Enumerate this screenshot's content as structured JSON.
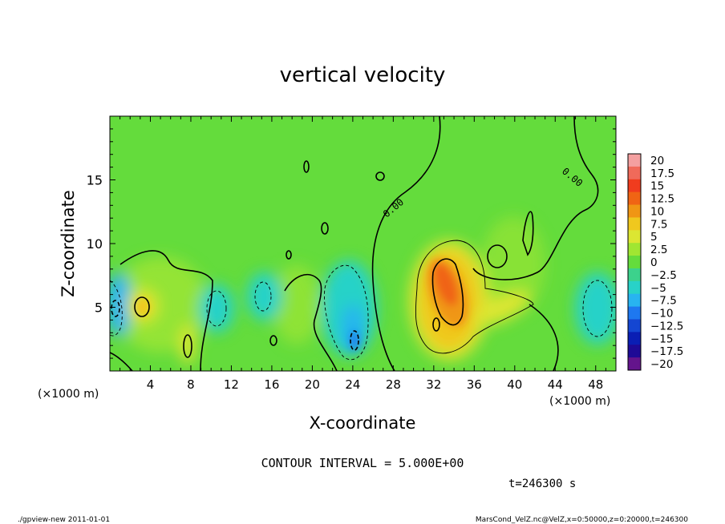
{
  "chart_data": {
    "type": "heatmap",
    "title": "vertical velocity",
    "xlabel": "X-coordinate",
    "ylabel": "Z-coordinate",
    "x_unit": "(×1000 m)",
    "y_unit": "(×1000 m)",
    "xlim": [
      0,
      50
    ],
    "ylim": [
      0,
      20
    ],
    "x_ticks": [
      "4",
      "8",
      "12",
      "16",
      "20",
      "24",
      "28",
      "32",
      "36",
      "40",
      "44",
      "48"
    ],
    "x_tick_values": [
      4,
      8,
      12,
      16,
      20,
      24,
      28,
      32,
      36,
      40,
      44,
      48
    ],
    "y_ticks": [
      "5",
      "10",
      "15"
    ],
    "y_tick_values": [
      5,
      10,
      15
    ],
    "contour_interval_text": "CONTOUR INTERVAL = 5.000E+00",
    "time_text": "t=246300 s",
    "contour_labels": [
      "0.00",
      "0.00"
    ],
    "colorbar": {
      "labels": [
        "20",
        "17.5",
        "15",
        "12.5",
        "10",
        "7.5",
        "5",
        "2.5",
        "0",
        "−2.5",
        "−5",
        "−7.5",
        "−10",
        "−12.5",
        "−15",
        "−17.5",
        "−20"
      ],
      "values": [
        20,
        17.5,
        15,
        12.5,
        10,
        7.5,
        5,
        2.5,
        0,
        -2.5,
        -5,
        -7.5,
        -10,
        -12.5,
        -15,
        -17.5,
        -20
      ],
      "colors": [
        "#f4a0a0",
        "#f06a5a",
        "#f03c1e",
        "#f06414",
        "#f09614",
        "#f0c81e",
        "#dce632",
        "#a0e632",
        "#64dc3c",
        "#3cd28c",
        "#28d2c8",
        "#28b4f0",
        "#1e78f0",
        "#1446d2",
        "#0a1eb4",
        "#1e0a96",
        "#64148c"
      ]
    },
    "features": [
      {
        "kind": "updraft",
        "x": 33,
        "z": 6.5,
        "peak": 12.5
      },
      {
        "kind": "updraft",
        "x": 4,
        "z": 5,
        "peak": 7.5
      },
      {
        "kind": "updraft",
        "x": 8,
        "z": 2,
        "peak": 5
      },
      {
        "kind": "downdraft",
        "x": 24,
        "z": 3,
        "peak": -7.5
      },
      {
        "kind": "downdraft",
        "x": 1,
        "z": 5,
        "peak": -7.5
      },
      {
        "kind": "downdraft",
        "x": 47,
        "z": 6,
        "peak": -5
      }
    ]
  },
  "footer": {
    "left": "./gpview-new   2011-01-01",
    "right": "MarsCond_VelZ.nc@VelZ,x=0:50000,z=0:20000,t=246300"
  }
}
